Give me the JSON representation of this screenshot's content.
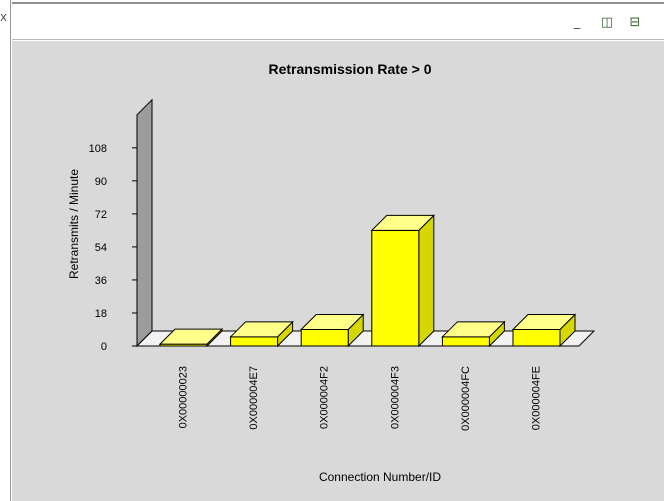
{
  "window": {
    "left_glyph": "x",
    "controls": [
      {
        "name": "minimize-icon",
        "glyph": "_"
      },
      {
        "name": "tile-vertical-icon",
        "glyph": "◫"
      },
      {
        "name": "tile-horizontal-icon",
        "glyph": "⊟"
      }
    ]
  },
  "colors": {
    "panel_bg": "#d9d9d9",
    "bar_front": "#ffff00",
    "bar_top": "#ffff8a",
    "bar_side": "#d6d600",
    "wall": "#9c9c9c",
    "floor": "#f2f2f2"
  },
  "chart_data": {
    "type": "bar",
    "title": "Retransmission Rate > 0",
    "xlabel": "Connection Number/ID",
    "ylabel": "Retransmits / Minute",
    "ylim": [
      0,
      126
    ],
    "yticks": [
      0,
      18,
      36,
      54,
      72,
      90,
      108
    ],
    "categories": [
      "0X00000023",
      "0X000004E7",
      "0X000004F2",
      "0X000004F3",
      "0X000004FC",
      "0X000004FE"
    ],
    "values": [
      1,
      5,
      9,
      63,
      5,
      9
    ],
    "grid": false,
    "legend": "none",
    "style": "3d"
  }
}
